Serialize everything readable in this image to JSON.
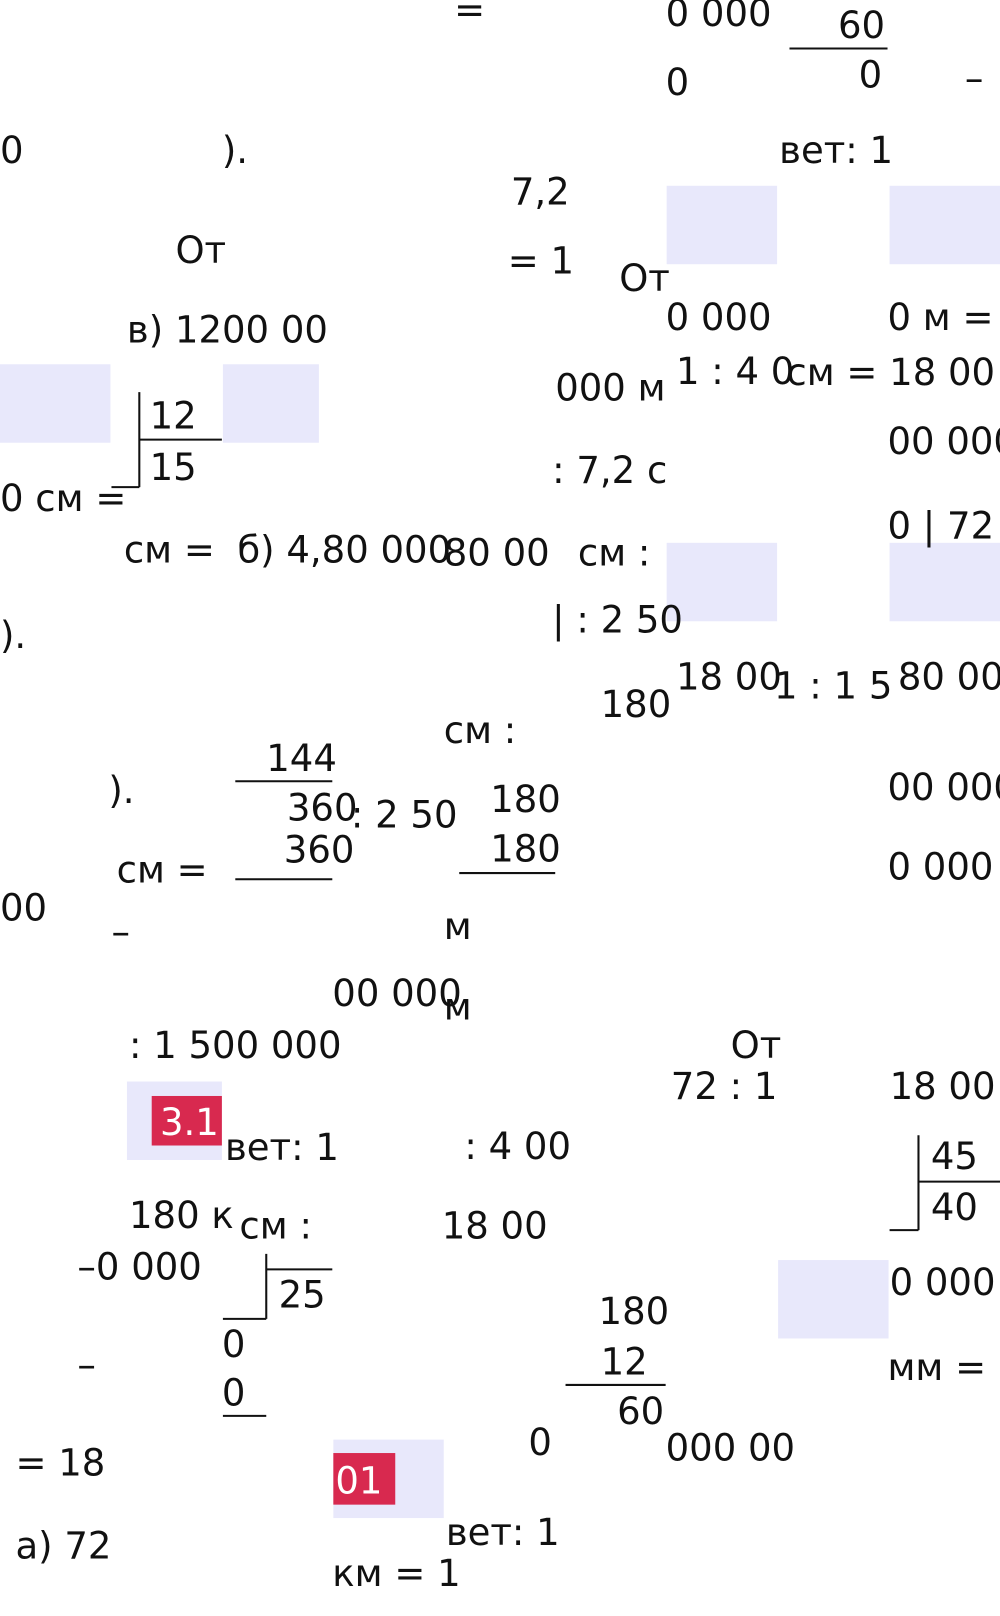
{
  "fragments": [
    "=",
    "0 000",
    "60",
    "0",
    "0",
    "–",
    "0",
    ").",
    "вет: 1",
    "7,2",
    "От",
    "= 1",
    "От",
    "в) 1200 00",
    "0 000",
    "0 м =",
    "000 м",
    "1 : 4 0",
    "см = 18 00",
    "12",
    "15",
    "0 см =",
    "00 000",
    ": 7,2 с",
    "0 | 72",
    "см =",
    "б) 4,80 000",
    "80 00",
    "см :",
    ").",
    "| : 2 50",
    "18 00",
    "1 : 1 5",
    "80 00",
    "180",
    "144",
    "см :",
    ").",
    "360",
    ": 2 50",
    "180",
    "00 000",
    "360",
    "180",
    "см =",
    "0 000",
    "00",
    "–",
    "м",
    "00 000",
    "м",
    ": 1 500 000",
    "От",
    "72 : 1",
    "18 00",
    "вет: 1",
    ": 4 00",
    "45",
    "40",
    "180 к",
    "см :",
    "18 00",
    "–0 000",
    "25",
    "0 000",
    "180",
    "0",
    "–",
    "12",
    "мм =",
    "0",
    "60",
    "= 18",
    "0",
    "000 00",
    "а) 72",
    "вет: 1",
    "км = 1"
  ],
  "badges": [
    "3.1",
    "01"
  ]
}
